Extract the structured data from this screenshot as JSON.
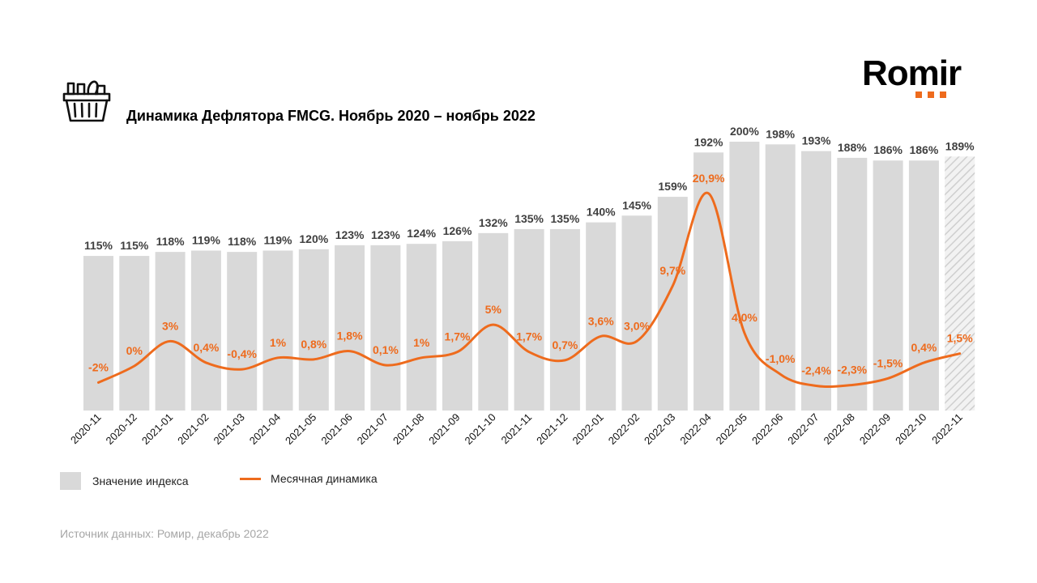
{
  "title": "Динамика Дефлятора FMCG. Ноябрь 2020 – ноябрь 2022",
  "brand": {
    "name": "Romir",
    "accent": "#ee6b1d"
  },
  "icons": [
    "shopping-basket-icon"
  ],
  "legend": {
    "bars": "Значение индекса",
    "line": "Месячная динамика"
  },
  "source": "Источник данных: Ромир, декабрь 2022",
  "chart_data": {
    "type": "bar",
    "categories": [
      "2020-11",
      "2020-12",
      "2021-01",
      "2021-02",
      "2021-03",
      "2021-04",
      "2021-05",
      "2021-06",
      "2021-07",
      "2021-08",
      "2021-09",
      "2021-10",
      "2021-11",
      "2021-12",
      "2022-01",
      "2022-02",
      "2022-03",
      "2022-04",
      "2022-05",
      "2022-06",
      "2022-07",
      "2022-08",
      "2022-09",
      "2022-10",
      "2022-11"
    ],
    "series": [
      {
        "name": "Значение индекса",
        "type": "bar",
        "values": [
          115,
          115,
          118,
          119,
          118,
          119,
          120,
          123,
          123,
          124,
          126,
          132,
          135,
          135,
          140,
          145,
          159,
          192,
          200,
          198,
          193,
          188,
          186,
          186,
          189
        ],
        "labels": [
          "115%",
          "115%",
          "118%",
          "119%",
          "118%",
          "119%",
          "120%",
          "123%",
          "123%",
          "124%",
          "126%",
          "132%",
          "135%",
          "135%",
          "140%",
          "145%",
          "159%",
          "192%",
          "200%",
          "198%",
          "193%",
          "188%",
          "186%",
          "186%",
          "189%"
        ],
        "color": "#d9d9d9",
        "hatched_last": true
      },
      {
        "name": "Месячная динамика",
        "type": "line",
        "values": [
          -2,
          0,
          3,
          0.4,
          -0.4,
          1,
          0.8,
          1.8,
          0.1,
          1,
          1.7,
          5,
          1.7,
          0.7,
          3.6,
          3.0,
          9.7,
          20.9,
          4.0,
          -1.0,
          -2.4,
          -2.3,
          -1.5,
          0.4,
          1.5
        ],
        "labels": [
          "-2%",
          "0%",
          "3%",
          "0,4%",
          "-0,4%",
          "1%",
          "0,8%",
          "1,8%",
          "0,1%",
          "1%",
          "1,7%",
          "5%",
          "1,7%",
          "0,7%",
          "3,6%",
          "3,0%",
          "9,7%",
          "20,9%",
          "4,0%",
          "-1,0%",
          "-2,4%",
          "-2,3%",
          "-1,5%",
          "0,4%",
          "1,5%"
        ],
        "color": "#ee6b1d"
      }
    ],
    "grid": false
  }
}
